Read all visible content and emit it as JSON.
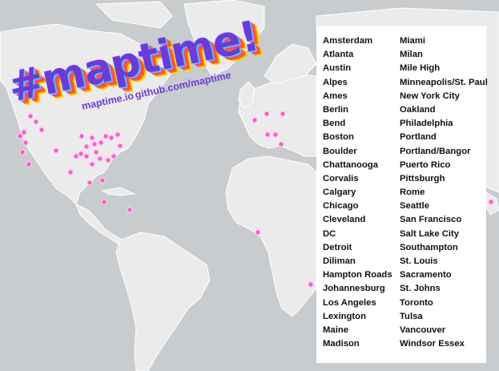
{
  "logo": {
    "title": "#maptime!",
    "links": [
      "maptime.io",
      "github.com/maptime"
    ]
  },
  "colors": {
    "ocean": "#c8ccce",
    "land": "#ebebeb",
    "marker": "#ff55c8",
    "panel": "#ffffff"
  },
  "chapters_left": [
    "Amsterdam",
    "Atlanta",
    "Austin",
    "Alpes",
    "Ames",
    "Berlin",
    "Bend",
    "Boston",
    "Boulder",
    "Chattanooga",
    "Corvalis",
    "Calgary",
    "Chicago",
    "Cleveland",
    "DC",
    "Detroit",
    "Diliman",
    "Hampton Roads",
    "Johannesburg",
    "Los Angeles",
    "Lexington",
    "Maine",
    "Madison"
  ],
  "chapters_right": [
    "Miami",
    "Milan",
    "Mile High",
    "Minneapolis/St. Paul",
    "New York City",
    "Oakland",
    "Philadelphia",
    "Portland",
    "Portland/Bangor",
    "Puerto Rico",
    "Pittsburgh",
    "Rome",
    "Seattle",
    "San Francisco",
    "Salt Lake City",
    "Southampton",
    "St. Louis",
    "Sacramento",
    "St. Johns",
    "Toronto",
    "Tulsa",
    "Vancouver",
    "Windsor Essex"
  ]
}
